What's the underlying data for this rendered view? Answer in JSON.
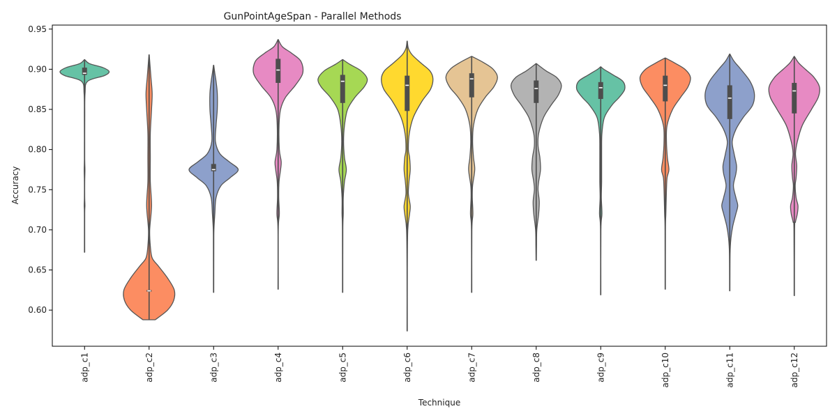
{
  "chart_data": {
    "type": "violin",
    "title": "GunPointAgeSpan - Parallel Methods",
    "xlabel": "Technique",
    "ylabel": "Accuracy",
    "ylim": [
      0.555,
      0.955
    ],
    "yticks": [
      "0.60",
      "0.65",
      "0.70",
      "0.75",
      "0.80",
      "0.85",
      "0.90",
      "0.95"
    ],
    "grid": false,
    "legend": "none",
    "categories": [
      "adp_c1",
      "adp_c2",
      "adp_c3",
      "adp_c4",
      "adp_c5",
      "adp_c6",
      "adp_c7",
      "adp_c8",
      "adp_c9",
      "adp_c10",
      "adp_c11",
      "adp_c12"
    ],
    "series": [
      {
        "color": "#66c2a5",
        "min": 0.672,
        "max": 0.912,
        "q1": 0.893,
        "median": 0.895,
        "q3": 0.902,
        "profile": [
          [
            0.672,
            0.002
          ],
          [
            0.72,
            0.002
          ],
          [
            0.73,
            0.006
          ],
          [
            0.74,
            0.002
          ],
          [
            0.76,
            0.002
          ],
          [
            0.775,
            0.006
          ],
          [
            0.79,
            0.002
          ],
          [
            0.84,
            0.003
          ],
          [
            0.87,
            0.008
          ],
          [
            0.885,
            0.05
          ],
          [
            0.892,
            0.32
          ],
          [
            0.897,
            0.4
          ],
          [
            0.902,
            0.3
          ],
          [
            0.907,
            0.08
          ],
          [
            0.912,
            0.003
          ]
        ]
      },
      {
        "color": "#fc8d62",
        "min": 0.588,
        "max": 0.918,
        "q1": 0.623,
        "median": 0.624,
        "q3": 0.625,
        "profile": [
          [
            0.588,
            0.1
          ],
          [
            0.6,
            0.3
          ],
          [
            0.612,
            0.4
          ],
          [
            0.625,
            0.41
          ],
          [
            0.64,
            0.3
          ],
          [
            0.655,
            0.15
          ],
          [
            0.665,
            0.05
          ],
          [
            0.68,
            0.02
          ],
          [
            0.7,
            0.01
          ],
          [
            0.73,
            0.04
          ],
          [
            0.76,
            0.02
          ],
          [
            0.79,
            0.02
          ],
          [
            0.82,
            0.02
          ],
          [
            0.85,
            0.04
          ],
          [
            0.87,
            0.05
          ],
          [
            0.89,
            0.03
          ],
          [
            0.905,
            0.015
          ],
          [
            0.918,
            0.002
          ]
        ]
      },
      {
        "color": "#8da0cb",
        "min": 0.622,
        "max": 0.905,
        "q1": 0.773,
        "median": 0.775,
        "q3": 0.782,
        "profile": [
          [
            0.622,
            0.002
          ],
          [
            0.68,
            0.003
          ],
          [
            0.7,
            0.005
          ],
          [
            0.72,
            0.02
          ],
          [
            0.74,
            0.04
          ],
          [
            0.755,
            0.12
          ],
          [
            0.765,
            0.27
          ],
          [
            0.775,
            0.4
          ],
          [
            0.785,
            0.25
          ],
          [
            0.795,
            0.1
          ],
          [
            0.81,
            0.03
          ],
          [
            0.83,
            0.04
          ],
          [
            0.85,
            0.06
          ],
          [
            0.87,
            0.06
          ],
          [
            0.885,
            0.04
          ],
          [
            0.895,
            0.02
          ],
          [
            0.905,
            0.002
          ]
        ]
      },
      {
        "color": "#e78ac3",
        "min": 0.626,
        "max": 0.937,
        "q1": 0.883,
        "median": 0.899,
        "q3": 0.913,
        "profile": [
          [
            0.626,
            0.002
          ],
          [
            0.7,
            0.002
          ],
          [
            0.72,
            0.02
          ],
          [
            0.74,
            0.01
          ],
          [
            0.76,
            0.015
          ],
          [
            0.775,
            0.04
          ],
          [
            0.785,
            0.05
          ],
          [
            0.8,
            0.02
          ],
          [
            0.83,
            0.015
          ],
          [
            0.85,
            0.04
          ],
          [
            0.865,
            0.12
          ],
          [
            0.88,
            0.28
          ],
          [
            0.895,
            0.4
          ],
          [
            0.91,
            0.37
          ],
          [
            0.92,
            0.22
          ],
          [
            0.928,
            0.07
          ],
          [
            0.937,
            0.002
          ]
        ]
      },
      {
        "color": "#a6d854",
        "min": 0.622,
        "max": 0.912,
        "q1": 0.858,
        "median": 0.885,
        "q3": 0.893,
        "profile": [
          [
            0.622,
            0.002
          ],
          [
            0.7,
            0.003
          ],
          [
            0.72,
            0.01
          ],
          [
            0.74,
            0.01
          ],
          [
            0.76,
            0.03
          ],
          [
            0.775,
            0.06
          ],
          [
            0.79,
            0.03
          ],
          [
            0.81,
            0.015
          ],
          [
            0.83,
            0.03
          ],
          [
            0.85,
            0.08
          ],
          [
            0.865,
            0.2
          ],
          [
            0.878,
            0.35
          ],
          [
            0.888,
            0.4
          ],
          [
            0.898,
            0.3
          ],
          [
            0.906,
            0.12
          ],
          [
            0.912,
            0.003
          ]
        ]
      },
      {
        "color": "#ffd92f",
        "min": 0.574,
        "max": 0.935,
        "q1": 0.848,
        "median": 0.88,
        "q3": 0.892,
        "profile": [
          [
            0.574,
            0.002
          ],
          [
            0.65,
            0.002
          ],
          [
            0.7,
            0.01
          ],
          [
            0.72,
            0.04
          ],
          [
            0.73,
            0.05
          ],
          [
            0.745,
            0.02
          ],
          [
            0.76,
            0.03
          ],
          [
            0.775,
            0.05
          ],
          [
            0.79,
            0.04
          ],
          [
            0.8,
            0.02
          ],
          [
            0.82,
            0.035
          ],
          [
            0.84,
            0.1
          ],
          [
            0.86,
            0.24
          ],
          [
            0.875,
            0.38
          ],
          [
            0.888,
            0.42
          ],
          [
            0.898,
            0.37
          ],
          [
            0.908,
            0.22
          ],
          [
            0.918,
            0.08
          ],
          [
            0.926,
            0.02
          ],
          [
            0.935,
            0.002
          ]
        ]
      },
      {
        "color": "#e5c494",
        "min": 0.622,
        "max": 0.916,
        "q1": 0.865,
        "median": 0.888,
        "q3": 0.895,
        "profile": [
          [
            0.622,
            0.002
          ],
          [
            0.7,
            0.003
          ],
          [
            0.72,
            0.02
          ],
          [
            0.74,
            0.01
          ],
          [
            0.755,
            0.015
          ],
          [
            0.775,
            0.05
          ],
          [
            0.79,
            0.03
          ],
          [
            0.81,
            0.015
          ],
          [
            0.83,
            0.03
          ],
          [
            0.85,
            0.1
          ],
          [
            0.865,
            0.22
          ],
          [
            0.878,
            0.36
          ],
          [
            0.89,
            0.42
          ],
          [
            0.9,
            0.35
          ],
          [
            0.908,
            0.2
          ],
          [
            0.916,
            0.003
          ]
        ]
      },
      {
        "color": "#b3b3b3",
        "min": 0.662,
        "max": 0.907,
        "q1": 0.858,
        "median": 0.876,
        "q3": 0.886,
        "profile": [
          [
            0.662,
            0.002
          ],
          [
            0.68,
            0.005
          ],
          [
            0.7,
            0.01
          ],
          [
            0.72,
            0.04
          ],
          [
            0.735,
            0.05
          ],
          [
            0.75,
            0.03
          ],
          [
            0.76,
            0.04
          ],
          [
            0.775,
            0.07
          ],
          [
            0.79,
            0.06
          ],
          [
            0.805,
            0.03
          ],
          [
            0.82,
            0.04
          ],
          [
            0.84,
            0.12
          ],
          [
            0.855,
            0.24
          ],
          [
            0.868,
            0.36
          ],
          [
            0.88,
            0.41
          ],
          [
            0.89,
            0.33
          ],
          [
            0.898,
            0.16
          ],
          [
            0.907,
            0.003
          ]
        ]
      },
      {
        "color": "#66c2a5",
        "min": 0.619,
        "max": 0.903,
        "q1": 0.863,
        "median": 0.877,
        "q3": 0.884,
        "profile": [
          [
            0.619,
            0.002
          ],
          [
            0.7,
            0.003
          ],
          [
            0.72,
            0.02
          ],
          [
            0.74,
            0.01
          ],
          [
            0.76,
            0.015
          ],
          [
            0.78,
            0.015
          ],
          [
            0.8,
            0.015
          ],
          [
            0.82,
            0.02
          ],
          [
            0.84,
            0.06
          ],
          [
            0.855,
            0.18
          ],
          [
            0.865,
            0.3
          ],
          [
            0.875,
            0.39
          ],
          [
            0.885,
            0.36
          ],
          [
            0.893,
            0.2
          ],
          [
            0.9,
            0.05
          ],
          [
            0.903,
            0.003
          ]
        ]
      },
      {
        "color": "#fc8d62",
        "min": 0.626,
        "max": 0.914,
        "q1": 0.86,
        "median": 0.88,
        "q3": 0.892,
        "profile": [
          [
            0.626,
            0.002
          ],
          [
            0.7,
            0.003
          ],
          [
            0.72,
            0.01
          ],
          [
            0.75,
            0.02
          ],
          [
            0.765,
            0.03
          ],
          [
            0.775,
            0.06
          ],
          [
            0.79,
            0.035
          ],
          [
            0.81,
            0.02
          ],
          [
            0.83,
            0.03
          ],
          [
            0.85,
            0.12
          ],
          [
            0.865,
            0.25
          ],
          [
            0.878,
            0.37
          ],
          [
            0.89,
            0.41
          ],
          [
            0.9,
            0.32
          ],
          [
            0.908,
            0.15
          ],
          [
            0.914,
            0.003
          ]
        ]
      },
      {
        "color": "#8da0cb",
        "min": 0.624,
        "max": 0.919,
        "q1": 0.838,
        "median": 0.864,
        "q3": 0.88,
        "profile": [
          [
            0.624,
            0.002
          ],
          [
            0.67,
            0.005
          ],
          [
            0.69,
            0.02
          ],
          [
            0.705,
            0.05
          ],
          [
            0.72,
            0.1
          ],
          [
            0.73,
            0.13
          ],
          [
            0.74,
            0.1
          ],
          [
            0.755,
            0.06
          ],
          [
            0.77,
            0.1
          ],
          [
            0.78,
            0.11
          ],
          [
            0.795,
            0.07
          ],
          [
            0.81,
            0.04
          ],
          [
            0.825,
            0.1
          ],
          [
            0.84,
            0.22
          ],
          [
            0.855,
            0.37
          ],
          [
            0.87,
            0.4
          ],
          [
            0.885,
            0.33
          ],
          [
            0.9,
            0.18
          ],
          [
            0.91,
            0.07
          ],
          [
            0.919,
            0.002
          ]
        ]
      },
      {
        "color": "#e78ac3",
        "min": 0.618,
        "max": 0.916,
        "q1": 0.845,
        "median": 0.873,
        "q3": 0.883,
        "profile": [
          [
            0.618,
            0.002
          ],
          [
            0.7,
            0.005
          ],
          [
            0.71,
            0.02
          ],
          [
            0.72,
            0.05
          ],
          [
            0.73,
            0.06
          ],
          [
            0.74,
            0.03
          ],
          [
            0.755,
            0.015
          ],
          [
            0.765,
            0.03
          ],
          [
            0.78,
            0.04
          ],
          [
            0.795,
            0.02
          ],
          [
            0.81,
            0.05
          ],
          [
            0.83,
            0.13
          ],
          [
            0.85,
            0.28
          ],
          [
            0.865,
            0.39
          ],
          [
            0.878,
            0.41
          ],
          [
            0.89,
            0.32
          ],
          [
            0.9,
            0.18
          ],
          [
            0.908,
            0.07
          ],
          [
            0.916,
            0.002
          ]
        ]
      }
    ]
  }
}
